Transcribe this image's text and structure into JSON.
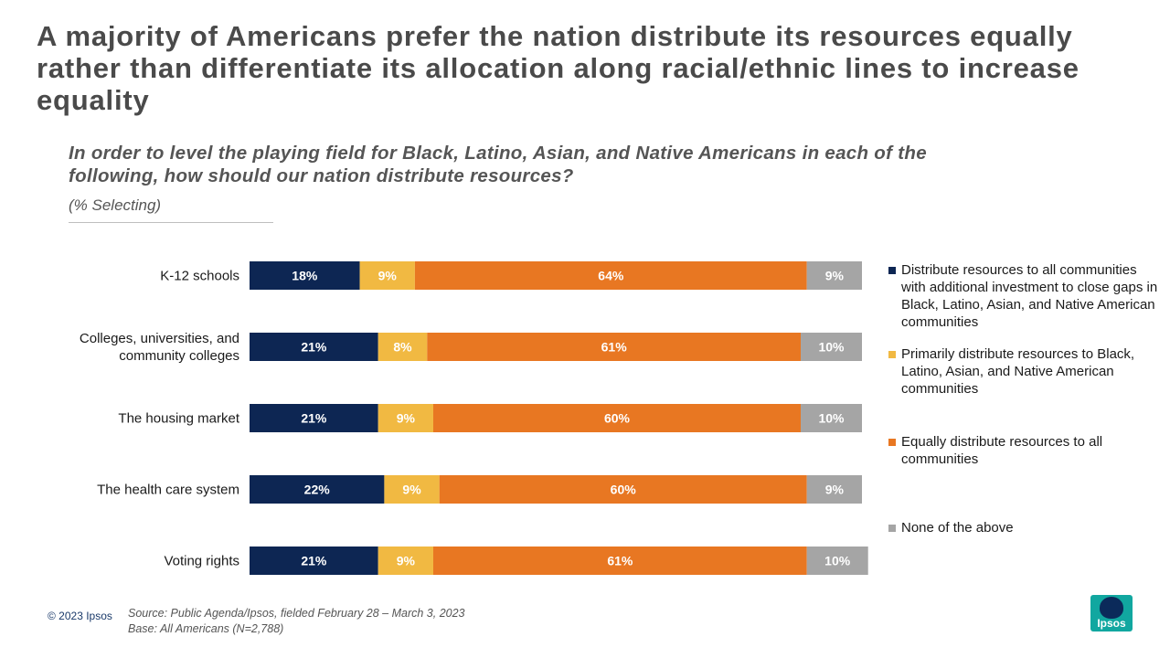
{
  "title": "A majority of Americans prefer the nation distribute its resources equally rather than differentiate its allocation along racial/ethnic lines to increase equality",
  "subtitle": "In order to level the playing field for Black, Latino, Asian, and Native Americans in each of the following, how should our nation distribute resources?",
  "unit_note": "(% Selecting)",
  "footer": {
    "copyright": "© 2023 Ipsos",
    "source": "Source: Public Agenda/Ipsos, fielded February 28 – March 3, 2023",
    "base": "Base: All Americans (N=2,788)",
    "logo_text": "Ipsos"
  },
  "chart_data": {
    "type": "bar",
    "orientation": "horizontal",
    "stacked": true,
    "categories": [
      [
        "K-12 schools"
      ],
      [
        "Colleges, universities, and",
        "community colleges"
      ],
      [
        "The housing market"
      ],
      [
        "The health care system"
      ],
      [
        "Voting rights"
      ]
    ],
    "series": [
      {
        "name": "Distribute resources to all communities with additional investment to close gaps in Black, Latino, Asian, and Native American communities",
        "color": "#0d2653",
        "values": [
          18,
          21,
          21,
          22,
          21
        ]
      },
      {
        "name": "Primarily distribute resources to Black, Latino, Asian, and Native American communities",
        "color": "#f1b942",
        "values": [
          9,
          8,
          9,
          9,
          9
        ]
      },
      {
        "name": "Equally distribute resources to all communities",
        "color": "#e87722",
        "values": [
          64,
          61,
          60,
          60,
          61
        ]
      },
      {
        "name": "None of the above",
        "color": "#a5a5a5",
        "values": [
          9,
          10,
          10,
          9,
          10
        ]
      }
    ],
    "value_suffix": "%",
    "xlim": [
      0,
      100
    ],
    "legend_position": "right"
  }
}
